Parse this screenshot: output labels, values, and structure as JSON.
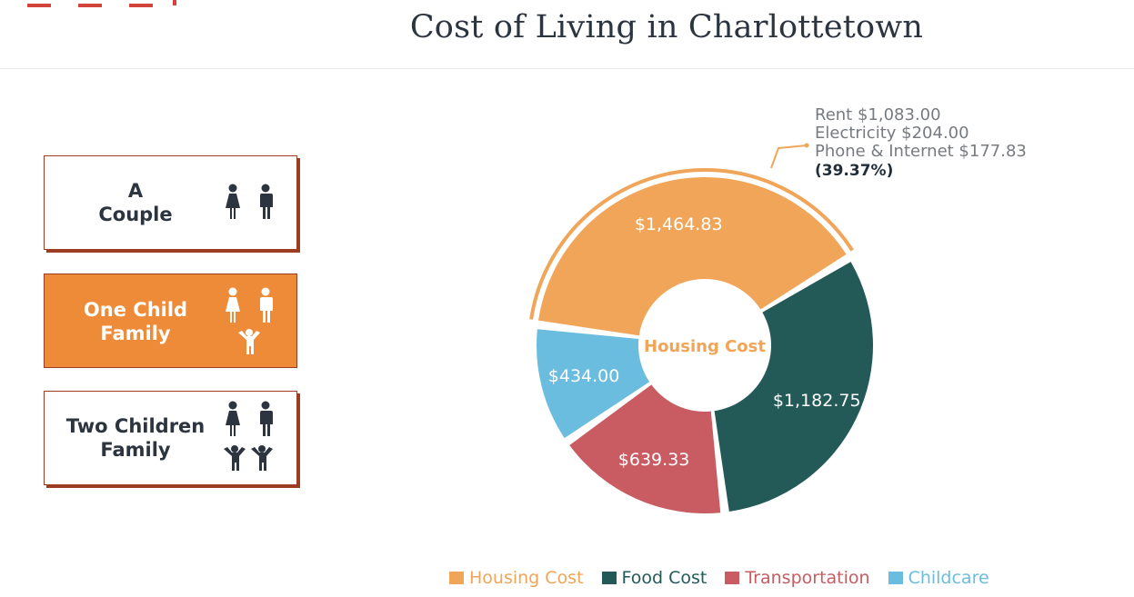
{
  "header": {
    "title": "Cost of Living in Charlottetown"
  },
  "family_selector": {
    "cards": [
      {
        "label_line1": "A",
        "label_line2": "Couple",
        "active": false,
        "icons": [
          "woman-icon",
          "man-icon"
        ]
      },
      {
        "label_line1": "One Child",
        "label_line2": "Family",
        "active": true,
        "icons": [
          "woman-icon",
          "man-icon",
          "child-icon"
        ]
      },
      {
        "label_line1": "Two Children",
        "label_line2": "Family",
        "active": false,
        "icons": [
          "woman-icon",
          "man-icon",
          "child-icon",
          "child-icon"
        ]
      }
    ]
  },
  "colors": {
    "housing": "#f0a558",
    "food": "#235a58",
    "transportation": "#c85c62",
    "childcare": "#6bbde0",
    "accent": "#ee8b38",
    "card_border": "#9c3d22",
    "text_dark": "#2c3440"
  },
  "chart_data": {
    "type": "pie",
    "donut": true,
    "center_label": "Housing Cost",
    "categories": [
      "Housing Cost",
      "Food Cost",
      "Transportation",
      "Childcare"
    ],
    "values": [
      1464.83,
      1182.75,
      639.33,
      434.0
    ],
    "value_labels": [
      "$1,464.83",
      "$1,182.75",
      "$639.33",
      "$434.00"
    ],
    "highlighted": "Housing Cost",
    "tooltip": {
      "lines": [
        "Rent $1,083.00",
        "Electricity $204.00",
        "Phone & Internet $177.83"
      ],
      "percent": "(39.37%)"
    },
    "legend": [
      "Housing Cost",
      "Food Cost",
      "Transportation",
      "Childcare"
    ],
    "legend_position": "bottom"
  }
}
